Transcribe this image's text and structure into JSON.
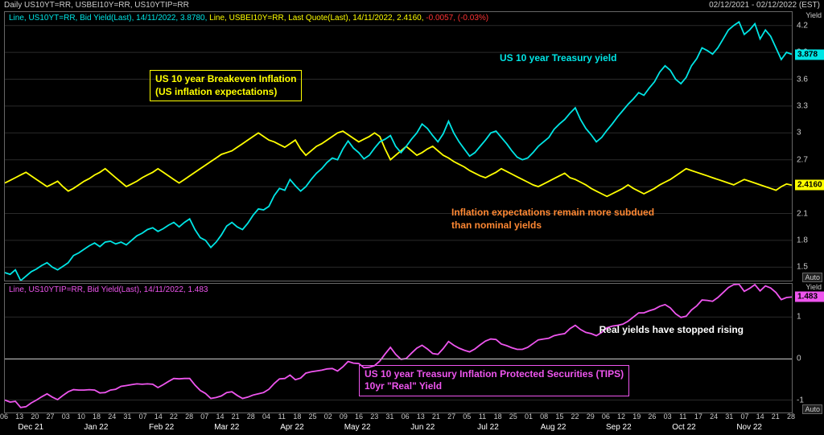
{
  "header": {
    "instruments": "Daily US10YT=RR, USBEI10Y=RR, US10YTIP=RR",
    "date_range": "02/12/2021 - 02/12/2022 (EST)"
  },
  "panel_top": {
    "yaxis_title": "Yield",
    "ticker_line1_parts": {
      "a": "Line, US10YT=RR, Bid Yield(Last), 14/11/2022, 3.8780, ",
      "b": "Line, USBEI10Y=RR, Last Quote(Last), 14/11/2022, 2.4160, ",
      "c": "-0.0057, (-0.03%)"
    },
    "ylim": [
      1.35,
      4.35
    ],
    "yticks": [
      "1.5",
      "1.8",
      "2.1",
      "2.4",
      "2.7",
      "3",
      "3.3",
      "3.6",
      "3.9",
      "4.2"
    ],
    "auto_label": "Auto",
    "series": {
      "treasury": {
        "color": "#00e5e5",
        "last_value": "3.878",
        "data": [
          1.44,
          1.42,
          1.47,
          1.35,
          1.4,
          1.45,
          1.48,
          1.52,
          1.55,
          1.5,
          1.47,
          1.51,
          1.55,
          1.63,
          1.66,
          1.7,
          1.74,
          1.77,
          1.73,
          1.78,
          1.79,
          1.76,
          1.78,
          1.75,
          1.8,
          1.85,
          1.88,
          1.92,
          1.94,
          1.9,
          1.93,
          1.97,
          2.0,
          1.95,
          2.0,
          2.04,
          1.92,
          1.83,
          1.8,
          1.72,
          1.78,
          1.86,
          1.96,
          2.0,
          1.95,
          1.92,
          1.99,
          2.08,
          2.15,
          2.14,
          2.18,
          2.3,
          2.38,
          2.36,
          2.48,
          2.41,
          2.35,
          2.4,
          2.48,
          2.55,
          2.6,
          2.67,
          2.72,
          2.7,
          2.82,
          2.91,
          2.83,
          2.78,
          2.71,
          2.75,
          2.83,
          2.9,
          2.93,
          2.97,
          2.85,
          2.78,
          2.85,
          2.93,
          3.0,
          3.1,
          3.05,
          2.97,
          2.9,
          2.99,
          3.13,
          3.0,
          2.9,
          2.82,
          2.74,
          2.78,
          2.85,
          2.92,
          3.0,
          3.02,
          2.95,
          2.88,
          2.8,
          2.73,
          2.7,
          2.72,
          2.78,
          2.85,
          2.9,
          2.95,
          3.04,
          3.1,
          3.15,
          3.22,
          3.28,
          3.15,
          3.05,
          2.98,
          2.9,
          2.95,
          3.03,
          3.1,
          3.18,
          3.25,
          3.32,
          3.38,
          3.45,
          3.42,
          3.5,
          3.57,
          3.68,
          3.75,
          3.7,
          3.6,
          3.55,
          3.62,
          3.75,
          3.83,
          3.95,
          3.92,
          3.88,
          3.95,
          4.05,
          4.15,
          4.2,
          4.24,
          4.1,
          4.15,
          4.22,
          4.05,
          4.15,
          4.08,
          3.95,
          3.82,
          3.9,
          3.878
        ]
      },
      "breakeven": {
        "color": "#ffff00",
        "last_value": "2.4160",
        "data": [
          2.44,
          2.47,
          2.5,
          2.53,
          2.56,
          2.52,
          2.48,
          2.44,
          2.4,
          2.43,
          2.46,
          2.4,
          2.35,
          2.38,
          2.42,
          2.46,
          2.49,
          2.53,
          2.56,
          2.6,
          2.55,
          2.5,
          2.45,
          2.4,
          2.43,
          2.46,
          2.5,
          2.53,
          2.56,
          2.6,
          2.56,
          2.52,
          2.48,
          2.44,
          2.48,
          2.52,
          2.56,
          2.6,
          2.64,
          2.68,
          2.72,
          2.76,
          2.78,
          2.8,
          2.84,
          2.88,
          2.92,
          2.96,
          3.0,
          2.96,
          2.92,
          2.9,
          2.87,
          2.84,
          2.88,
          2.92,
          2.82,
          2.75,
          2.8,
          2.85,
          2.88,
          2.92,
          2.96,
          3.0,
          3.02,
          2.98,
          2.94,
          2.9,
          2.93,
          2.96,
          3.0,
          2.96,
          2.82,
          2.7,
          2.75,
          2.8,
          2.85,
          2.8,
          2.75,
          2.78,
          2.82,
          2.85,
          2.8,
          2.75,
          2.72,
          2.68,
          2.65,
          2.62,
          2.58,
          2.55,
          2.52,
          2.5,
          2.53,
          2.56,
          2.6,
          2.57,
          2.54,
          2.51,
          2.48,
          2.45,
          2.42,
          2.4,
          2.43,
          2.46,
          2.49,
          2.52,
          2.55,
          2.5,
          2.48,
          2.45,
          2.42,
          2.38,
          2.35,
          2.32,
          2.29,
          2.32,
          2.35,
          2.38,
          2.42,
          2.38,
          2.35,
          2.32,
          2.35,
          2.38,
          2.42,
          2.45,
          2.48,
          2.52,
          2.56,
          2.6,
          2.58,
          2.56,
          2.54,
          2.52,
          2.5,
          2.48,
          2.46,
          2.44,
          2.42,
          2.45,
          2.48,
          2.46,
          2.44,
          2.42,
          2.4,
          2.38,
          2.36,
          2.4,
          2.43,
          2.416
        ]
      }
    },
    "annotations": {
      "breakeven_label": "US 10 year Breakeven Inflation\n(US inflation expectations)",
      "treasury_label": "US 10 year Treasury yield",
      "subdued_label": "Inflation expectations remain more subdued\nthan nominal yields"
    }
  },
  "panel_bottom": {
    "yaxis_title": "Yield",
    "ticker_line": "Line, US10YTIP=RR, Bid Yield(Last), 14/11/2022, 1.483",
    "ylim": [
      -1.3,
      1.8
    ],
    "yticks": [
      "-1",
      "0",
      "1"
    ],
    "zero_line_y": 0,
    "auto_label": "Auto",
    "series": {
      "tips": {
        "color": "#ee55ee",
        "last_value": "1.483",
        "data": [
          -1.0,
          -1.05,
          -1.03,
          -1.18,
          -1.16,
          -1.07,
          -1.0,
          -0.92,
          -0.85,
          -0.93,
          -0.99,
          -0.89,
          -0.8,
          -0.75,
          -0.76,
          -0.76,
          -0.75,
          -0.76,
          -0.83,
          -0.82,
          -0.76,
          -0.74,
          -0.67,
          -0.65,
          -0.63,
          -0.61,
          -0.62,
          -0.61,
          -0.62,
          -0.7,
          -0.63,
          -0.55,
          -0.48,
          -0.49,
          -0.48,
          -0.48,
          -0.64,
          -0.77,
          -0.84,
          -0.96,
          -0.94,
          -0.9,
          -0.82,
          -0.8,
          -0.89,
          -0.96,
          -0.93,
          -0.88,
          -0.85,
          -0.82,
          -0.74,
          -0.6,
          -0.49,
          -0.48,
          -0.4,
          -0.51,
          -0.47,
          -0.35,
          -0.32,
          -0.3,
          -0.28,
          -0.25,
          -0.24,
          -0.3,
          -0.2,
          -0.07,
          -0.11,
          -0.12,
          -0.22,
          -0.21,
          -0.17,
          -0.06,
          0.11,
          0.27,
          0.1,
          -0.02,
          0.0,
          0.13,
          0.25,
          0.32,
          0.23,
          0.12,
          0.1,
          0.24,
          0.41,
          0.32,
          0.25,
          0.2,
          0.16,
          0.23,
          0.33,
          0.42,
          0.47,
          0.46,
          0.35,
          0.31,
          0.26,
          0.22,
          0.22,
          0.27,
          0.36,
          0.45,
          0.47,
          0.49,
          0.55,
          0.58,
          0.6,
          0.72,
          0.8,
          0.7,
          0.63,
          0.6,
          0.55,
          0.63,
          0.74,
          0.78,
          0.8,
          0.83,
          0.9,
          1.0,
          1.1,
          1.1,
          1.15,
          1.19,
          1.26,
          1.3,
          1.22,
          1.08,
          0.99,
          1.02,
          1.17,
          1.27,
          1.41,
          1.4,
          1.38,
          1.47,
          1.59,
          1.71,
          1.78,
          1.79,
          1.62,
          1.69,
          1.78,
          1.63,
          1.75,
          1.7,
          1.59,
          1.42,
          1.47,
          1.483
        ]
      }
    },
    "annotations": {
      "stopped_rising": "Real yields have stopped rising",
      "tips_label": "US 10 year Treasury Inflation Protected Securities (TIPS)\n10yr \"Real\" Yield"
    }
  },
  "xaxis": {
    "days": [
      "06",
      "13",
      "20",
      "27",
      "03",
      "10",
      "18",
      "24",
      "31",
      "07",
      "14",
      "22",
      "28",
      "07",
      "14",
      "21",
      "28",
      "04",
      "11",
      "18",
      "25",
      "02",
      "09",
      "16",
      "23",
      "31",
      "06",
      "13",
      "21",
      "27",
      "05",
      "11",
      "18",
      "25",
      "01",
      "08",
      "15",
      "22",
      "29",
      "06",
      "12",
      "19",
      "26",
      "03",
      "11",
      "17",
      "24",
      "31",
      "07",
      "14",
      "21",
      "28"
    ],
    "months": [
      "Dec 21",
      "Jan 22",
      "Feb 22",
      "Mar 22",
      "Apr 22",
      "May 22",
      "Jun 22",
      "Jul 22",
      "Aug 22",
      "Sep 22",
      "Oct 22",
      "Nov 22"
    ],
    "month_positions": [
      0.034,
      0.117,
      0.2,
      0.283,
      0.366,
      0.449,
      0.532,
      0.615,
      0.698,
      0.781,
      0.864,
      0.947
    ]
  },
  "colors": {
    "bg": "#000000",
    "grid": "#333333",
    "text": "#cccccc",
    "treasury": "#00e5e5",
    "breakeven": "#ffff00",
    "tips": "#ee55ee",
    "annotation_orange": "#ff8833",
    "white": "#ffffff"
  }
}
